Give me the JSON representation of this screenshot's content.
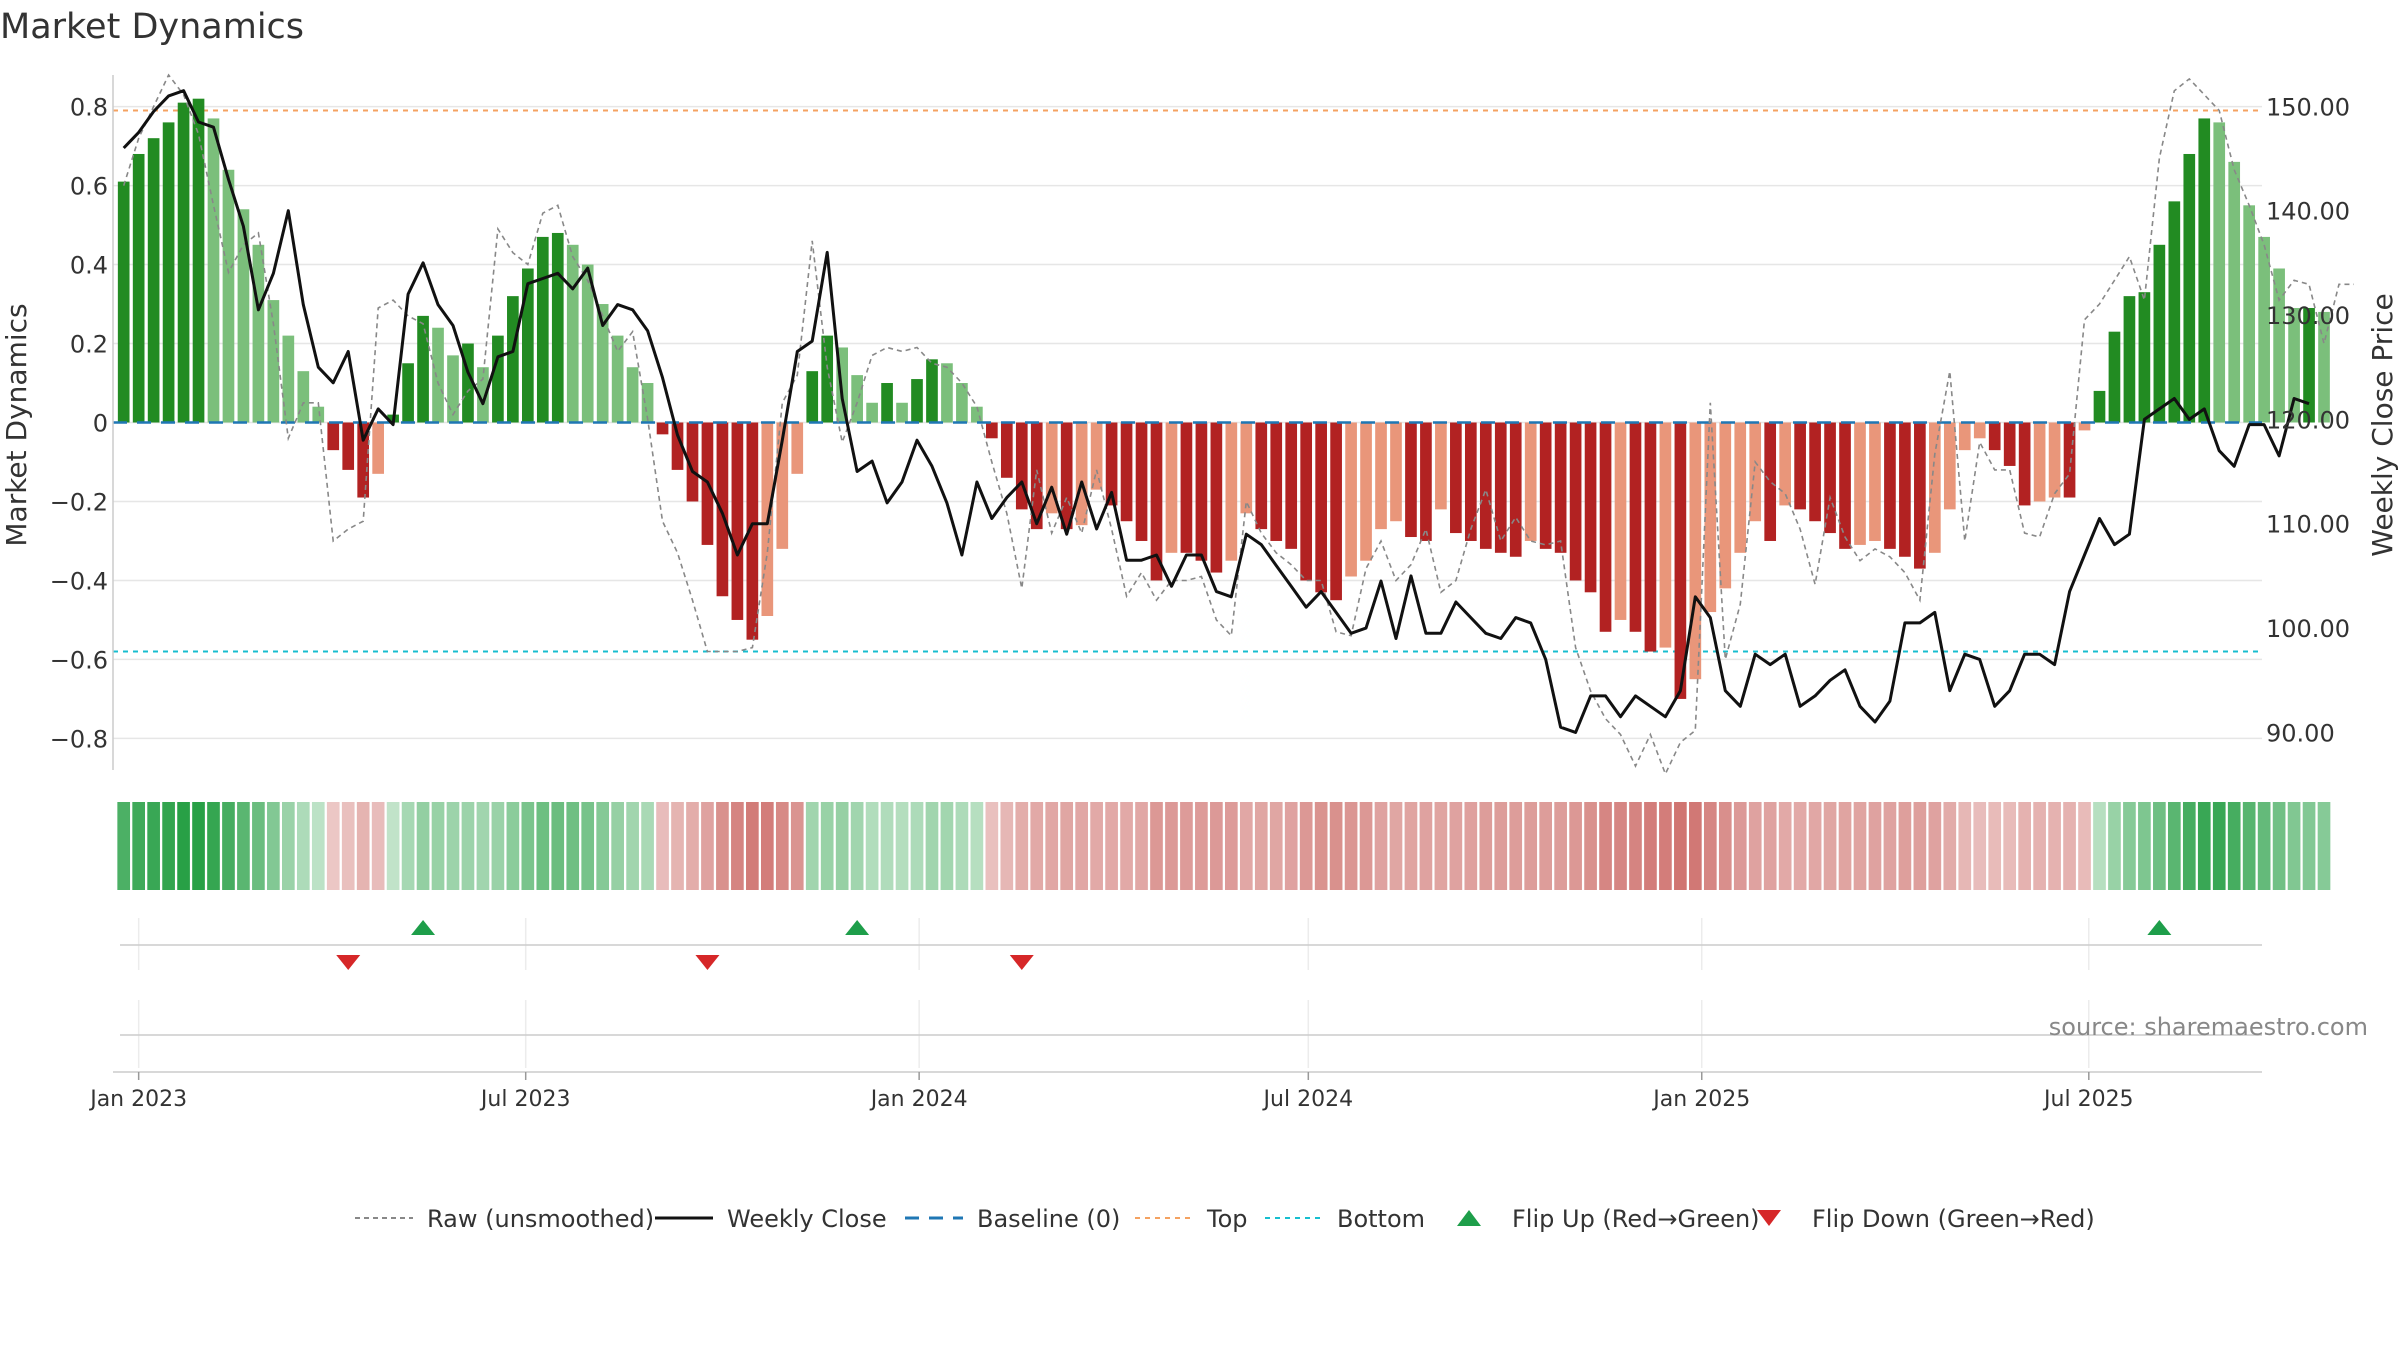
{
  "title": "Market Dynamics",
  "source": "source: sharemaestro.com",
  "colors": {
    "strong_green": "#228b22",
    "light_green": "#7bbf7b",
    "strong_red": "#b22222",
    "light_red": "#e9967a",
    "close_line": "#111111",
    "raw_line": "#888888",
    "baseline": "#1f77b4",
    "top": "#f4a261",
    "bottom": "#17becf",
    "flip_up": "#1e9e4a",
    "flip_down": "#d62728"
  },
  "legend": [
    {
      "label": "Raw (unsmoothed)",
      "style": "raw"
    },
    {
      "label": "Weekly Close",
      "style": "close"
    },
    {
      "label": "Baseline (0)",
      "style": "baseline"
    },
    {
      "label": "Top",
      "style": "top"
    },
    {
      "label": "Bottom",
      "style": "bottom"
    },
    {
      "label": "Flip Up (Red→Green)",
      "style": "flip_up"
    },
    {
      "label": "Flip Down (Green→Red)",
      "style": "flip_down"
    }
  ],
  "chart_data": {
    "type": "bar",
    "title": "Market Dynamics",
    "ylabel": "Market Dynamics",
    "y2label": "Weekly Close Price",
    "ylim": [
      -0.88,
      0.88
    ],
    "y2lim": [
      86.4,
      153.0
    ],
    "yticks": [
      -0.8,
      -0.6,
      -0.4,
      -0.2,
      0,
      0.2,
      0.4,
      0.6,
      0.8
    ],
    "ytick_labels": [
      "−0.8",
      "−0.6",
      "−0.4",
      "−0.2",
      "0",
      "0.2",
      "0.4",
      "0.6",
      "0.8"
    ],
    "y2ticks": [
      90,
      100,
      110,
      120,
      130,
      140,
      150
    ],
    "y2tick_labels": [
      "90.00",
      "100.00",
      "110.00",
      "120.00",
      "130.00",
      "140.00",
      "150.00"
    ],
    "x_ticks": [
      {
        "date": "2023-01-01",
        "label": "Jan 2023"
      },
      {
        "date": "2023-07-01",
        "label": "Jul 2023"
      },
      {
        "date": "2024-01-01",
        "label": "Jan 2024"
      },
      {
        "date": "2024-07-01",
        "label": "Jul 2024"
      },
      {
        "date": "2025-01-01",
        "label": "Jan 2025"
      },
      {
        "date": "2025-07-01",
        "label": "Jul 2025"
      }
    ],
    "x_range": [
      "2022-12-20",
      "2025-09-20"
    ],
    "first_week": "2022-12-25",
    "grid": true,
    "legend_position": "bottom",
    "top_level": 0.79,
    "bottom_level": -0.58,
    "baseline": 0,
    "dynamics": [
      0.61,
      0.68,
      0.72,
      0.76,
      0.81,
      0.82,
      0.77,
      0.64,
      0.54,
      0.45,
      0.31,
      0.22,
      0.13,
      0.04,
      -0.07,
      -0.12,
      -0.19,
      -0.13,
      0.02,
      0.15,
      0.27,
      0.24,
      0.17,
      0.2,
      0.14,
      0.22,
      0.32,
      0.39,
      0.47,
      0.48,
      0.45,
      0.4,
      0.3,
      0.22,
      0.14,
      0.1,
      -0.03,
      -0.12,
      -0.2,
      -0.31,
      -0.44,
      -0.5,
      -0.55,
      -0.49,
      -0.32,
      -0.13,
      0.13,
      0.22,
      0.19,
      0.12,
      0.05,
      0.1,
      0.05,
      0.11,
      0.16,
      0.15,
      0.1,
      0.04,
      -0.04,
      -0.14,
      -0.22,
      -0.27,
      -0.23,
      -0.27,
      -0.26,
      -0.17,
      -0.21,
      -0.25,
      -0.3,
      -0.4,
      -0.33,
      -0.33,
      -0.35,
      -0.38,
      -0.35,
      -0.23,
      -0.27,
      -0.3,
      -0.32,
      -0.4,
      -0.43,
      -0.45,
      -0.39,
      -0.35,
      -0.27,
      -0.25,
      -0.29,
      -0.3,
      -0.22,
      -0.28,
      -0.3,
      -0.32,
      -0.33,
      -0.34,
      -0.3,
      -0.32,
      -0.33,
      -0.4,
      -0.43,
      -0.53,
      -0.5,
      -0.53,
      -0.58,
      -0.57,
      -0.7,
      -0.65,
      -0.48,
      -0.42,
      -0.33,
      -0.25,
      -0.3,
      -0.21,
      -0.22,
      -0.25,
      -0.28,
      -0.32,
      -0.31,
      -0.3,
      -0.32,
      -0.34,
      -0.37,
      -0.33,
      -0.22,
      -0.07,
      -0.04,
      -0.07,
      -0.11,
      -0.21,
      -0.2,
      -0.19,
      -0.19,
      -0.02,
      0.08,
      0.23,
      0.32,
      0.33,
      0.45,
      0.56,
      0.68,
      0.77,
      0.76,
      0.66,
      0.55,
      0.47,
      0.39,
      0.29,
      0.29,
      0.28
    ],
    "raw": [
      0.6,
      0.72,
      0.8,
      0.88,
      0.83,
      0.73,
      0.55,
      0.38,
      0.45,
      0.48,
      0.25,
      -0.04,
      0.05,
      0.05,
      -0.3,
      -0.27,
      -0.25,
      0.29,
      0.31,
      0.27,
      0.25,
      0.1,
      0.02,
      0.08,
      0.11,
      0.49,
      0.43,
      0.4,
      0.53,
      0.55,
      0.42,
      0.36,
      0.27,
      0.18,
      0.23,
      0.01,
      -0.25,
      -0.33,
      -0.45,
      -0.58,
      -0.58,
      -0.58,
      -0.57,
      -0.33,
      0.05,
      0.12,
      0.46,
      0.14,
      -0.05,
      0.05,
      0.17,
      0.19,
      0.18,
      0.19,
      0.15,
      0.14,
      0.1,
      0.04,
      -0.1,
      -0.23,
      -0.42,
      -0.12,
      -0.28,
      -0.19,
      -0.28,
      -0.12,
      -0.27,
      -0.44,
      -0.38,
      -0.45,
      -0.4,
      -0.4,
      -0.39,
      -0.5,
      -0.54,
      -0.2,
      -0.28,
      -0.33,
      -0.36,
      -0.4,
      -0.4,
      -0.53,
      -0.54,
      -0.37,
      -0.3,
      -0.4,
      -0.36,
      -0.27,
      -0.43,
      -0.4,
      -0.27,
      -0.17,
      -0.3,
      -0.24,
      -0.3,
      -0.31,
      -0.3,
      -0.57,
      -0.68,
      -0.75,
      -0.79,
      -0.87,
      -0.79,
      -0.89,
      -0.81,
      -0.78,
      0.05,
      -0.6,
      -0.46,
      -0.1,
      -0.15,
      -0.18,
      -0.27,
      -0.41,
      -0.19,
      -0.29,
      -0.35,
      -0.32,
      -0.34,
      -0.38,
      -0.45,
      -0.08,
      0.13,
      -0.3,
      -0.05,
      -0.12,
      -0.12,
      -0.28,
      -0.29,
      -0.18,
      -0.13,
      0.26,
      0.3,
      0.36,
      0.42,
      0.31,
      0.67,
      0.84,
      0.87,
      0.83,
      0.79,
      0.64,
      0.55,
      0.45,
      0.31,
      0.36,
      0.35,
      0.2,
      0.35,
      0.35
    ],
    "close": [
      146,
      147.5,
      149.5,
      151,
      151.5,
      148.5,
      148,
      143,
      138.5,
      130.5,
      134,
      140,
      131,
      125,
      123.5,
      126.5,
      118,
      121,
      119.5,
      132,
      135,
      131,
      129,
      124.5,
      121.5,
      126,
      126.5,
      133,
      133.5,
      134,
      132.5,
      134.5,
      129,
      131,
      130.5,
      128.5,
      124,
      118.5,
      115,
      114,
      111,
      107,
      110,
      110,
      118,
      126.5,
      127.5,
      136,
      122,
      115,
      116,
      112,
      114,
      118,
      115.5,
      112,
      107,
      114,
      110.5,
      112.5,
      114,
      110,
      113.5,
      109,
      114,
      109.5,
      113,
      106.5,
      106.5,
      107,
      104,
      107,
      107,
      103.5,
      103,
      109,
      108,
      106,
      104,
      102,
      103.5,
      101.5,
      99.5,
      100,
      104.5,
      99,
      105,
      99.5,
      99.5,
      102.5,
      101,
      99.5,
      99,
      101,
      100.5,
      97,
      90.5,
      90,
      93.5,
      93.5,
      91.5,
      93.5,
      92.5,
      91.5,
      94,
      103,
      101,
      94,
      92.5,
      97.5,
      96.5,
      97.5,
      92.5,
      93.5,
      95,
      96,
      92.5,
      91,
      93,
      100.5,
      100.5,
      101.5,
      94,
      97.5,
      97,
      92.5,
      94,
      97.5,
      97.5,
      96.5,
      103.5,
      107,
      110.5,
      108,
      109,
      120,
      121,
      122,
      120,
      121,
      117,
      115.5,
      119.5,
      119.5,
      116.5,
      122,
      121.5
    ],
    "regime_shade": [
      0.62,
      0.68,
      0.71,
      0.75,
      0.8,
      0.8,
      0.74,
      0.65,
      0.55,
      0.47,
      0.35,
      0.24,
      0.14,
      0.06,
      0.07,
      0.12,
      0.19,
      0.14,
      0.04,
      0.17,
      0.27,
      0.25,
      0.22,
      0.22,
      0.2,
      0.23,
      0.31,
      0.39,
      0.46,
      0.47,
      0.45,
      0.4,
      0.34,
      0.26,
      0.2,
      0.16,
      0.14,
      0.19,
      0.24,
      0.3,
      0.41,
      0.48,
      0.53,
      0.52,
      0.45,
      0.38,
      0.2,
      0.25,
      0.26,
      0.2,
      0.12,
      0.13,
      0.11,
      0.14,
      0.2,
      0.19,
      0.14,
      0.1,
      0.12,
      0.17,
      0.23,
      0.26,
      0.27,
      0.28,
      0.27,
      0.26,
      0.26,
      0.26,
      0.27,
      0.36,
      0.35,
      0.34,
      0.34,
      0.35,
      0.34,
      0.27,
      0.28,
      0.28,
      0.3,
      0.36,
      0.39,
      0.4,
      0.37,
      0.36,
      0.3,
      0.28,
      0.29,
      0.3,
      0.29,
      0.3,
      0.31,
      0.33,
      0.33,
      0.33,
      0.33,
      0.33,
      0.33,
      0.36,
      0.4,
      0.47,
      0.47,
      0.48,
      0.52,
      0.52,
      0.58,
      0.55,
      0.47,
      0.42,
      0.35,
      0.3,
      0.3,
      0.26,
      0.26,
      0.27,
      0.28,
      0.29,
      0.29,
      0.3,
      0.3,
      0.32,
      0.32,
      0.3,
      0.25,
      0.17,
      0.14,
      0.15,
      0.15,
      0.2,
      0.2,
      0.2,
      0.2,
      0.15,
      0.1,
      0.25,
      0.33,
      0.37,
      0.45,
      0.55,
      0.65,
      0.72,
      0.72,
      0.65,
      0.56,
      0.5,
      0.44,
      0.36,
      0.35,
      0.33
    ],
    "flip_up_weeks": [
      20,
      49,
      136
    ],
    "flip_down_weeks": [
      15,
      39,
      60
    ]
  }
}
